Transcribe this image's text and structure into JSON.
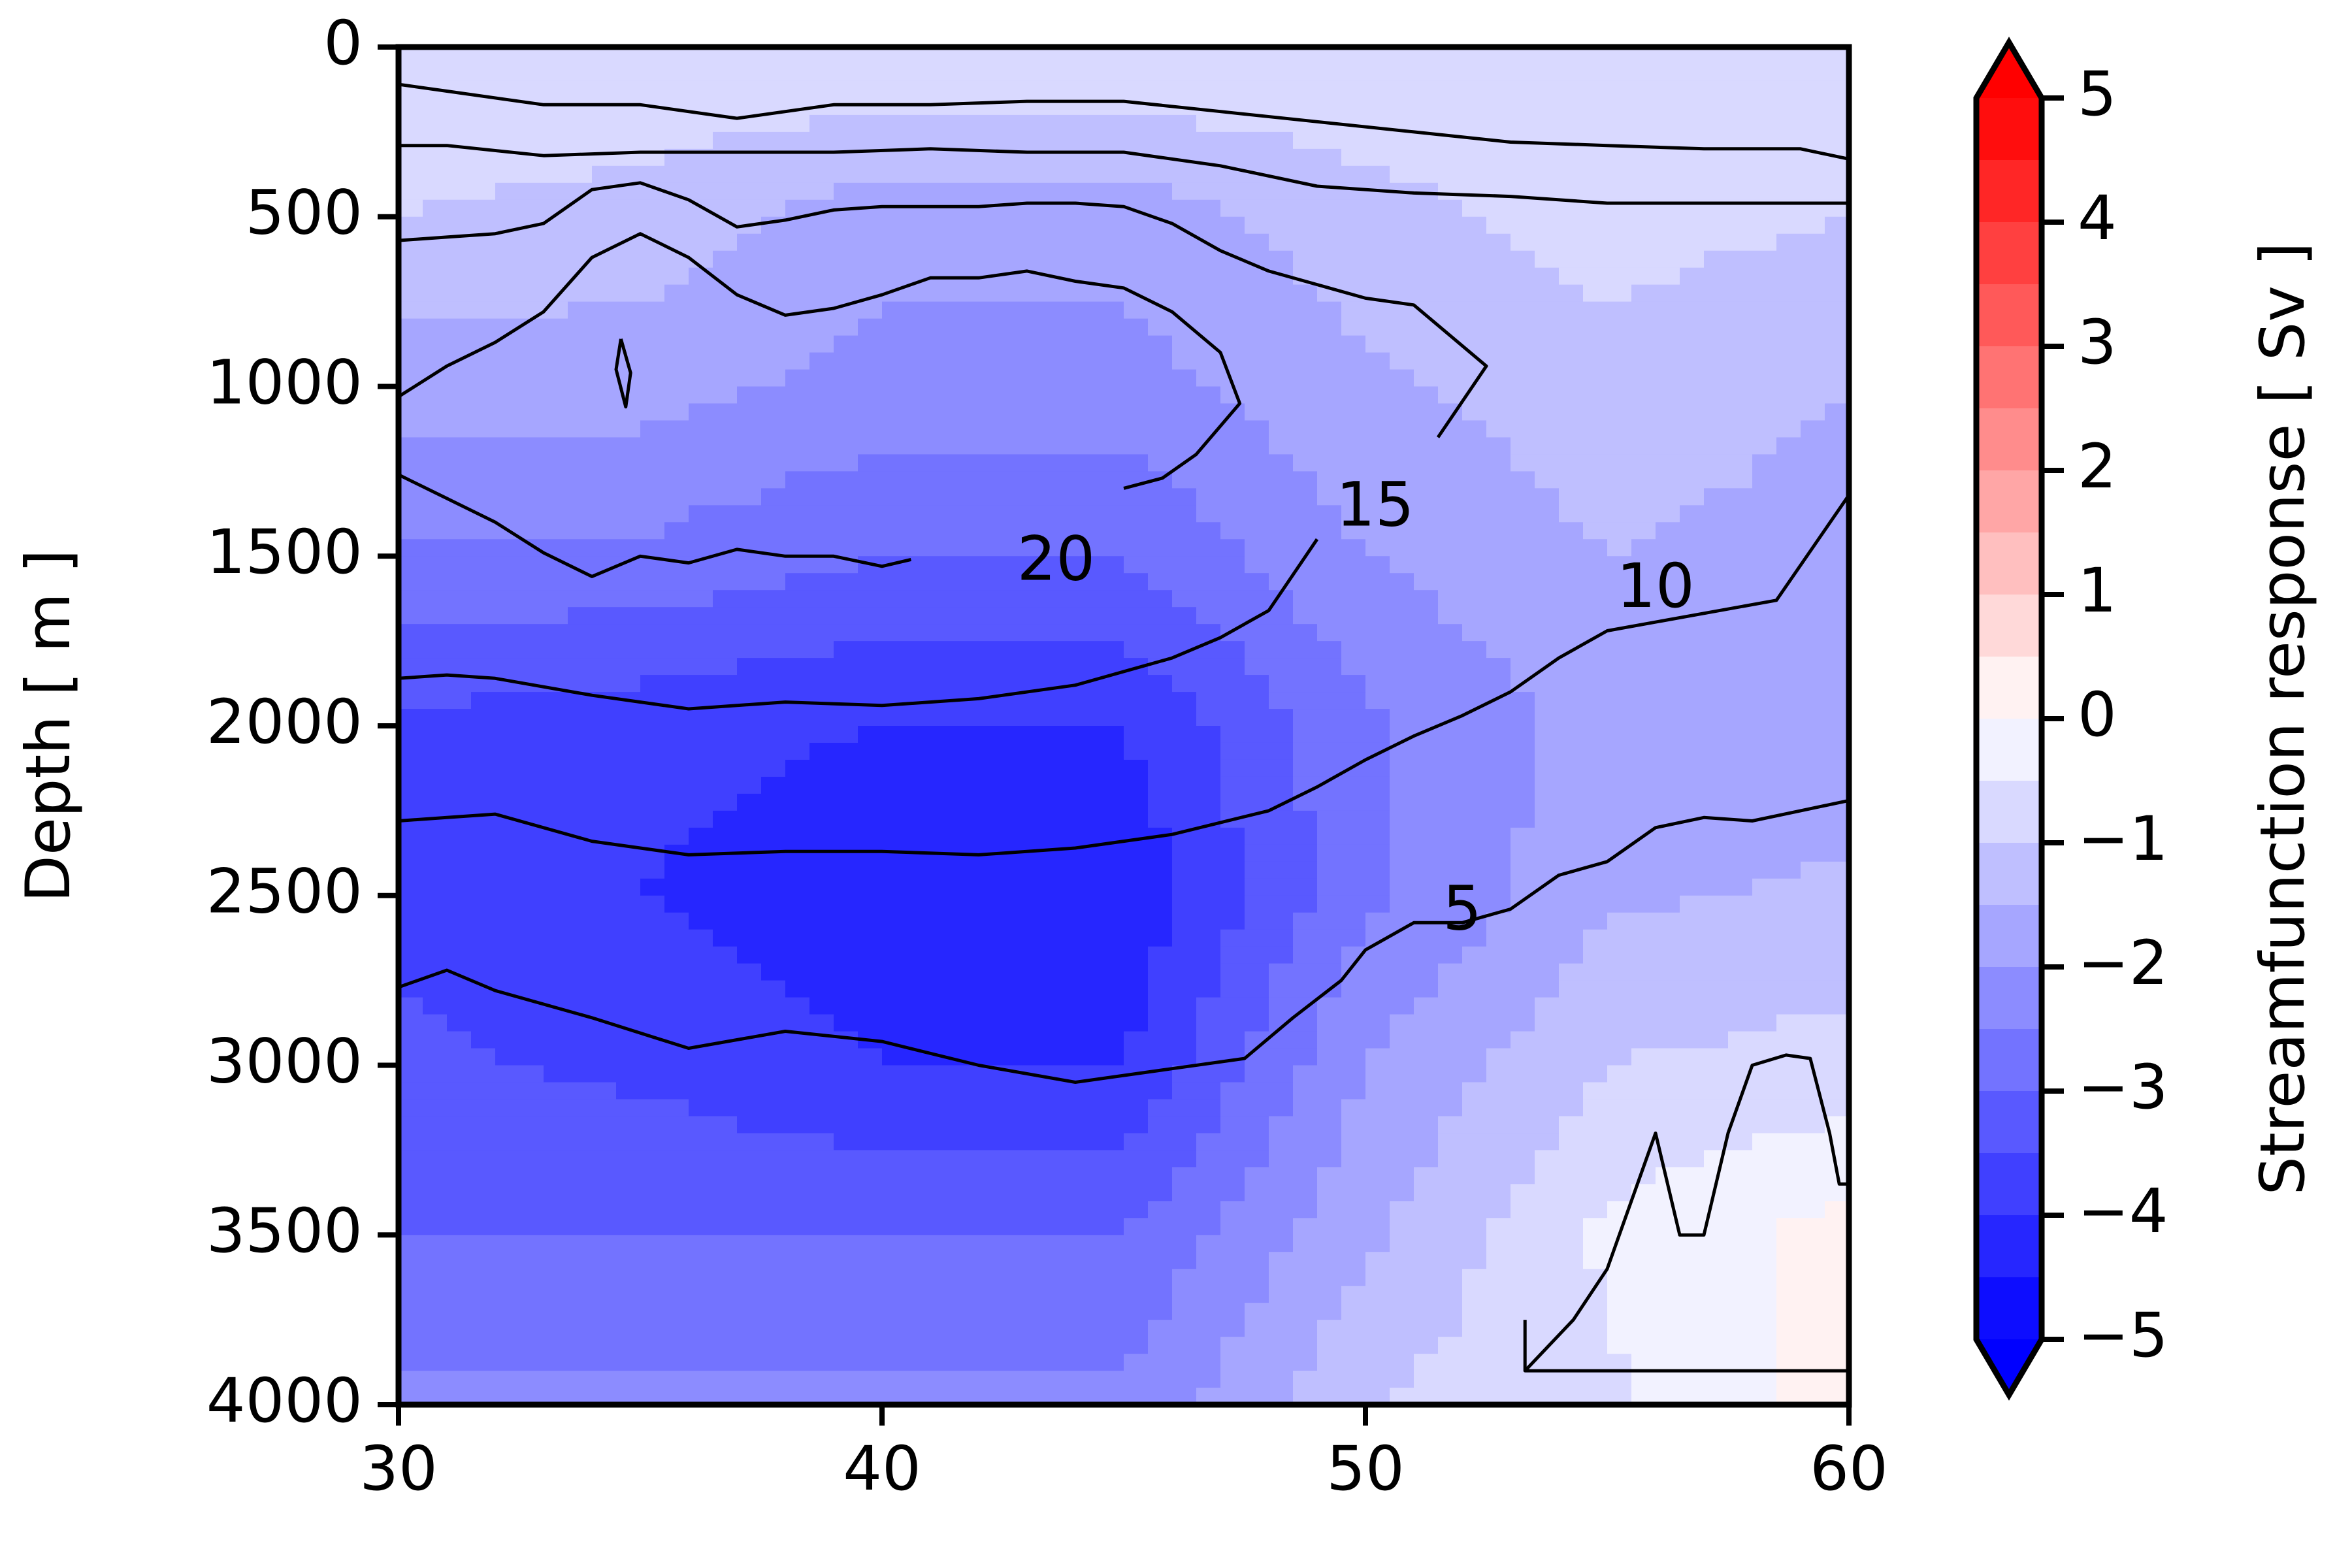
{
  "chart_data": {
    "type": "heatmap",
    "subtype": "filled-contour with overlaid line contours",
    "title": "",
    "xlabel": "",
    "ylabel": "Depth [ m ]",
    "xlim": [
      30,
      60
    ],
    "ylim": [
      4000,
      0
    ],
    "x_ticks": [
      "30",
      "40",
      "50",
      "60"
    ],
    "y_ticks": [
      "0",
      "500",
      "1000",
      "1500",
      "2000",
      "2500",
      "3000",
      "3500",
      "4000"
    ],
    "colorbar": {
      "label": "Streamfunction response [ Sv ]",
      "range": [
        -5,
        5
      ],
      "ticks": [
        "5",
        "4",
        "3",
        "2",
        "1",
        "0",
        "−1",
        "−2",
        "−3",
        "−4",
        "−5"
      ],
      "extend": "both",
      "colors": {
        "max_red": "#ff0000",
        "mid": "#ffffff",
        "max_blue": "#0000ff"
      }
    },
    "filled_field_description_values": {
      "x": [
        30,
        35,
        40,
        45,
        50,
        55,
        60
      ],
      "depth": [
        0,
        500,
        1000,
        1500,
        2000,
        2500,
        3000,
        3500,
        4000
      ],
      "values": [
        [
          -0.5,
          -0.5,
          -0.5,
          -0.5,
          -0.5,
          -0.5,
          -0.5
        ],
        [
          -1.0,
          -1.2,
          -1.8,
          -1.8,
          -1.2,
          -0.8,
          -1.0
        ],
        [
          -1.8,
          -1.8,
          -2.2,
          -2.2,
          -1.6,
          -1.2,
          -1.5
        ],
        [
          -2.6,
          -2.6,
          -3.0,
          -3.0,
          -2.0,
          -1.5,
          -1.7
        ],
        [
          -3.6,
          -3.8,
          -4.0,
          -4.0,
          -2.6,
          -1.8,
          -1.8
        ],
        [
          -3.6,
          -4.0,
          -4.4,
          -4.4,
          -2.6,
          -1.6,
          -1.4
        ],
        [
          -3.4,
          -3.6,
          -4.0,
          -4.0,
          -2.0,
          -1.0,
          -0.8
        ],
        [
          -3.0,
          -3.0,
          -3.0,
          -3.0,
          -1.6,
          -0.4,
          0.2
        ],
        [
          -2.4,
          -2.4,
          -2.4,
          -2.4,
          -1.0,
          -0.6,
          0.2
        ]
      ]
    },
    "contour_lines": [
      {
        "level": 5,
        "label": "5",
        "label_pos": [
          52,
          2550
        ],
        "x": [
          30,
          31,
          32,
          34,
          36,
          38,
          40,
          42,
          44,
          46,
          47.5,
          48.5,
          49.5,
          50,
          51,
          52,
          53,
          54,
          55,
          56,
          57,
          58,
          59,
          60
        ],
        "y": [
          2770,
          2720,
          2780,
          2860,
          2950,
          2900,
          2930,
          3000,
          3050,
          3010,
          2980,
          2860,
          2750,
          2660,
          2580,
          2580,
          2540,
          2440,
          2400,
          2300,
          2270,
          2280,
          2250,
          2220
        ]
      },
      {
        "level": 10,
        "label": "10",
        "label_pos": [
          56,
          1600
        ],
        "x": [
          30,
          31,
          32,
          34,
          36,
          38,
          40,
          42,
          44,
          46,
          48,
          49,
          50,
          51,
          52,
          53,
          54,
          55,
          58.5,
          60
        ],
        "y": [
          2280,
          2270,
          2260,
          2340,
          2380,
          2370,
          2370,
          2380,
          2360,
          2320,
          2250,
          2180,
          2100,
          2030,
          1970,
          1900,
          1800,
          1720,
          1630,
          1320
        ]
      },
      {
        "level": 15,
        "label": "15",
        "label_pos": [
          50.2,
          1360
        ],
        "x": [
          30,
          31,
          32,
          34,
          36,
          38,
          40,
          42,
          44,
          46,
          47,
          48,
          49
        ],
        "y": [
          1860,
          1850,
          1860,
          1910,
          1950,
          1930,
          1940,
          1920,
          1880,
          1800,
          1740,
          1660,
          1450
        ]
      },
      {
        "level": 20,
        "label": "20",
        "label_pos": [
          43.6,
          1520
        ],
        "x": [
          30,
          31,
          32,
          33,
          34,
          35,
          36,
          37,
          38,
          39,
          40,
          40.6
        ],
        "y": [
          1260,
          1330,
          1400,
          1490,
          1560,
          1500,
          1520,
          1480,
          1500,
          1500,
          1530,
          1510
        ]
      },
      {
        "level": 20,
        "label": "",
        "x": [
          30,
          31,
          32,
          33,
          34,
          35,
          36,
          37,
          38,
          39,
          40,
          41,
          42,
          43,
          44,
          45,
          46,
          47,
          47.4,
          46.5,
          45.8,
          45
        ],
        "y": [
          1030,
          940,
          870,
          780,
          620,
          550,
          620,
          730,
          790,
          770,
          730,
          680,
          680,
          660,
          690,
          710,
          780,
          900,
          1050,
          1200,
          1270,
          1300
        ]
      },
      {
        "level": 15,
        "label": "",
        "x": [
          30,
          31,
          32,
          33,
          34,
          35,
          36,
          37,
          38,
          39,
          40,
          41,
          42,
          43,
          44,
          45,
          46,
          47,
          48,
          49,
          50,
          51,
          52.5,
          51.5
        ],
        "y": [
          570,
          560,
          550,
          520,
          420,
          400,
          450,
          530,
          510,
          480,
          470,
          470,
          470,
          460,
          460,
          470,
          520,
          600,
          660,
          700,
          740,
          760,
          940,
          1150
        ]
      },
      {
        "level": 10,
        "label": "",
        "x": [
          30,
          31,
          33,
          35,
          37,
          39,
          41,
          43,
          45,
          47,
          49,
          51,
          53,
          55,
          57,
          59,
          60
        ],
        "y": [
          290,
          290,
          320,
          310,
          310,
          310,
          300,
          310,
          310,
          350,
          410,
          430,
          440,
          460,
          460,
          460,
          460
        ]
      },
      {
        "level": 5,
        "label": "",
        "x": [
          30,
          31,
          33,
          35,
          37,
          39,
          41,
          43,
          45,
          47,
          49,
          51,
          53,
          55,
          57,
          59,
          60
        ],
        "y": [
          110,
          130,
          170,
          170,
          210,
          170,
          170,
          160,
          160,
          190,
          220,
          250,
          280,
          290,
          300,
          300,
          330
        ]
      },
      {
        "level": 20,
        "label": "",
        "x": [
          34.6,
          34.8,
          34.7,
          34.5,
          34.6
        ],
        "y": [
          860,
          960,
          1060,
          950,
          860
        ]
      },
      {
        "level": 20,
        "label": "",
        "x": [
          53.3,
          54.3,
          55,
          56,
          56.5,
          57,
          57.5,
          58,
          58.7,
          59.2,
          59.6,
          59.8,
          60,
          60,
          53.3,
          53.3
        ],
        "y": [
          3900,
          3750,
          3600,
          3200,
          3500,
          3500,
          3200,
          3000,
          2970,
          2980,
          3200,
          3350,
          3350,
          3900,
          3900,
          3750
        ]
      }
    ]
  }
}
